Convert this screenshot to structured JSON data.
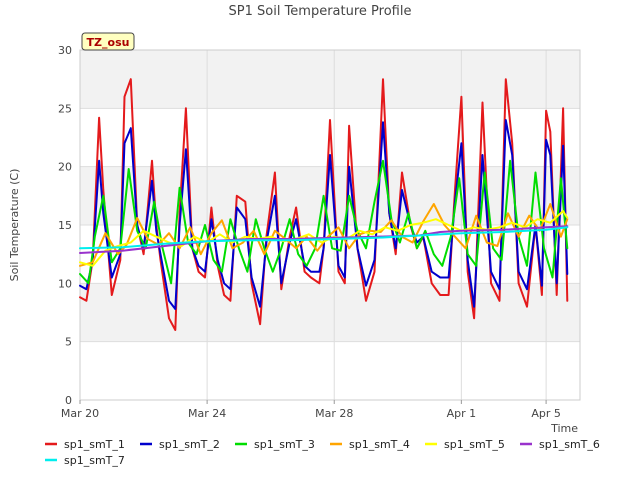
{
  "chart_data": {
    "type": "line",
    "title": "SP1 Soil Temperature Profile",
    "xlabel": "Time",
    "ylabel": "Soil Temperature (C)",
    "tag": "TZ_osu",
    "xlim": [
      0,
      11.8
    ],
    "ylim": [
      0,
      30
    ],
    "grid": true,
    "legend_position": "bottom",
    "x_ticks": [
      {
        "value": 0,
        "label": "Mar 20"
      },
      {
        "value": 3,
        "label": "Mar 24"
      },
      {
        "value": 6,
        "label": "Mar 28"
      },
      {
        "value": 9,
        "label": "Apr 1"
      },
      {
        "value": 11,
        "label": "Apr 5"
      }
    ],
    "y_ticks": [
      0,
      5,
      10,
      15,
      20,
      25,
      30
    ],
    "series": [
      {
        "name": "sp1_smT_1",
        "color": "#e41a1c",
        "x": [
          0,
          0.15,
          0.3,
          0.45,
          0.55,
          0.75,
          0.95,
          1.05,
          1.2,
          1.35,
          1.5,
          1.7,
          1.8,
          1.9,
          2.1,
          2.25,
          2.35,
          2.5,
          2.65,
          2.8,
          2.95,
          3.1,
          3.25,
          3.4,
          3.55,
          3.7,
          3.9,
          4.05,
          4.25,
          4.4,
          4.6,
          4.75,
          4.95,
          5.1,
          5.3,
          5.45,
          5.65,
          5.75,
          5.9,
          6.1,
          6.25,
          6.35,
          6.55,
          6.75,
          6.95,
          7.15,
          7.3,
          7.45,
          7.6,
          7.8,
          7.95,
          8.1,
          8.3,
          8.5,
          8.7,
          8.85,
          9.0,
          9.15,
          9.3,
          9.5,
          9.7,
          9.9,
          10.05,
          10.2,
          10.35,
          10.55,
          10.75,
          10.9,
          11.0,
          11.1,
          11.25,
          11.4,
          11.5
        ],
        "y": [
          8.8,
          8.5,
          12,
          24.2,
          18,
          9,
          12,
          26,
          27.5,
          15,
          12.5,
          20.5,
          15,
          12,
          7,
          6,
          16,
          25,
          13,
          11,
          10.5,
          16.5,
          11.5,
          9,
          8.5,
          17.5,
          17,
          10,
          6.5,
          14,
          19.5,
          9.5,
          14,
          16.5,
          11,
          10.5,
          10,
          13,
          24,
          11,
          10,
          23.5,
          13,
          8.5,
          11,
          27.5,
          16,
          12.5,
          19.5,
          15,
          13,
          14,
          10,
          9,
          9,
          18,
          26,
          11,
          7,
          25.5,
          10,
          8.5,
          27.5,
          22,
          10,
          8,
          15,
          9,
          24.8,
          23,
          9,
          25,
          8.5
        ]
      },
      {
        "name": "sp1_smT_2",
        "color": "#0000cc",
        "x": [
          0,
          0.15,
          0.3,
          0.45,
          0.55,
          0.75,
          0.95,
          1.05,
          1.2,
          1.35,
          1.5,
          1.7,
          1.8,
          1.9,
          2.1,
          2.25,
          2.35,
          2.5,
          2.65,
          2.8,
          2.95,
          3.1,
          3.25,
          3.4,
          3.55,
          3.7,
          3.9,
          4.05,
          4.25,
          4.4,
          4.6,
          4.75,
          4.95,
          5.1,
          5.3,
          5.45,
          5.65,
          5.75,
          5.9,
          6.1,
          6.25,
          6.35,
          6.55,
          6.75,
          6.95,
          7.15,
          7.3,
          7.45,
          7.6,
          7.8,
          7.95,
          8.1,
          8.3,
          8.5,
          8.7,
          8.85,
          9.0,
          9.15,
          9.3,
          9.5,
          9.7,
          9.9,
          10.05,
          10.2,
          10.35,
          10.55,
          10.75,
          10.9,
          11.0,
          11.1,
          11.25,
          11.4,
          11.5
        ],
        "y": [
          9.8,
          9.5,
          12,
          20.5,
          16,
          10.5,
          12.5,
          22,
          23.3,
          15,
          13,
          18.8,
          14.5,
          12.5,
          8.5,
          7.8,
          15,
          21.5,
          13,
          11.5,
          11,
          15.5,
          12,
          10,
          9.5,
          16.5,
          15.5,
          10.5,
          8,
          13.5,
          17.5,
          10,
          13.5,
          15.5,
          11.5,
          11,
          11,
          13,
          21,
          11.5,
          10.5,
          20,
          13,
          9.8,
          12,
          23.8,
          16,
          13,
          18,
          15,
          13.5,
          14,
          11,
          10.5,
          10.5,
          17,
          22,
          12,
          8,
          21,
          11,
          9.5,
          24,
          21,
          11,
          9.5,
          15,
          9.8,
          22.3,
          21,
          10,
          21.8,
          10.8
        ]
      },
      {
        "name": "sp1_smT_3",
        "color": "#00dd00",
        "x": [
          0,
          0.2,
          0.35,
          0.55,
          0.75,
          0.95,
          1.15,
          1.35,
          1.55,
          1.75,
          1.95,
          2.15,
          2.35,
          2.55,
          2.75,
          2.95,
          3.15,
          3.35,
          3.55,
          3.75,
          3.95,
          4.15,
          4.35,
          4.55,
          4.75,
          4.95,
          5.15,
          5.35,
          5.55,
          5.75,
          5.95,
          6.15,
          6.35,
          6.55,
          6.75,
          6.95,
          7.15,
          7.35,
          7.55,
          7.75,
          7.95,
          8.15,
          8.35,
          8.55,
          8.75,
          8.95,
          9.15,
          9.35,
          9.55,
          9.75,
          9.95,
          10.15,
          10.35,
          10.55,
          10.75,
          10.95,
          11.15,
          11.35,
          11.5
        ],
        "y": [
          10.8,
          10,
          14,
          17.5,
          11.8,
          13,
          19.8,
          14.5,
          13,
          17,
          13,
          10,
          18.2,
          13.5,
          12.5,
          15,
          12,
          11,
          15.5,
          13,
          11,
          15.5,
          13,
          11,
          13,
          15.5,
          12.5,
          11.5,
          13,
          17.5,
          13,
          12.8,
          17.5,
          14.5,
          13,
          17,
          20.5,
          15.5,
          13.5,
          16,
          13,
          14.5,
          12.5,
          11.5,
          14,
          19,
          12.5,
          11.5,
          19.5,
          13,
          12,
          20.5,
          14,
          11.5,
          19.5,
          13,
          10.5,
          19,
          13
        ]
      },
      {
        "name": "sp1_smT_4",
        "color": "#ffa500",
        "x": [
          0,
          0.3,
          0.6,
          0.9,
          1.1,
          1.35,
          1.6,
          1.85,
          2.1,
          2.35,
          2.6,
          2.85,
          3.1,
          3.35,
          3.6,
          3.85,
          4.1,
          4.35,
          4.6,
          4.85,
          5.1,
          5.35,
          5.6,
          5.85,
          6.1,
          6.35,
          6.6,
          6.85,
          7.1,
          7.35,
          7.6,
          7.85,
          8.1,
          8.35,
          8.6,
          8.85,
          9.1,
          9.35,
          9.6,
          9.85,
          10.1,
          10.35,
          10.6,
          10.85,
          11.1,
          11.35,
          11.5
        ],
        "y": [
          11.5,
          11.8,
          14.3,
          12.5,
          13.3,
          15.6,
          13.8,
          13.3,
          14.3,
          13,
          14.8,
          12.5,
          14.3,
          15.4,
          13,
          13.5,
          14.5,
          12.5,
          14.5,
          13.8,
          13,
          14,
          12.8,
          14,
          14.8,
          13,
          14.2,
          14.5,
          14.4,
          15.4,
          14,
          13.5,
          15.3,
          16.8,
          15,
          14,
          13,
          15.8,
          13.5,
          13.2,
          16,
          14,
          15.8,
          14.5,
          16.8,
          14,
          15.5
        ]
      },
      {
        "name": "sp1_smT_5",
        "color": "#ffff00",
        "x": [
          0,
          0.3,
          0.6,
          0.9,
          1.2,
          1.5,
          1.8,
          2.1,
          2.4,
          2.7,
          3.0,
          3.3,
          3.6,
          3.9,
          4.2,
          4.5,
          4.8,
          5.1,
          5.4,
          5.7,
          6.0,
          6.3,
          6.6,
          6.9,
          7.2,
          7.5,
          7.8,
          8.1,
          8.4,
          8.7,
          9.0,
          9.3,
          9.6,
          9.9,
          10.2,
          10.5,
          10.8,
          11.1,
          11.4,
          11.5
        ],
        "y": [
          11.8,
          11.5,
          12.8,
          13.2,
          13.5,
          14.5,
          14,
          13.5,
          13.2,
          14,
          13.5,
          14.2,
          13.5,
          14,
          13.8,
          14,
          13.6,
          13.8,
          14.2,
          13.5,
          14,
          13.8,
          14.5,
          14.2,
          14.8,
          14.5,
          15,
          15.2,
          15.5,
          15,
          14.5,
          14.8,
          14.6,
          14.8,
          15.2,
          14.8,
          15.5,
          15.2,
          16.2,
          15.6
        ]
      },
      {
        "name": "sp1_smT_6",
        "color": "#9932cc",
        "x": [
          0,
          1,
          2,
          3,
          4,
          5,
          6,
          7,
          8,
          8.5,
          9,
          10,
          11,
          11.5
        ],
        "y": [
          12.6,
          12.8,
          13.2,
          13.6,
          13.8,
          13.8,
          13.9,
          14.0,
          14.1,
          14.4,
          14.5,
          14.6,
          14.8,
          14.9
        ]
      },
      {
        "name": "sp1_smT_7",
        "color": "#00eeee",
        "x": [
          0,
          1,
          2,
          3,
          4,
          5,
          6,
          7,
          8,
          9,
          10,
          11,
          11.5
        ],
        "y": [
          13.0,
          13.1,
          13.4,
          13.6,
          13.7,
          13.7,
          13.8,
          13.9,
          14.1,
          14.3,
          14.4,
          14.6,
          14.8
        ]
      }
    ]
  }
}
